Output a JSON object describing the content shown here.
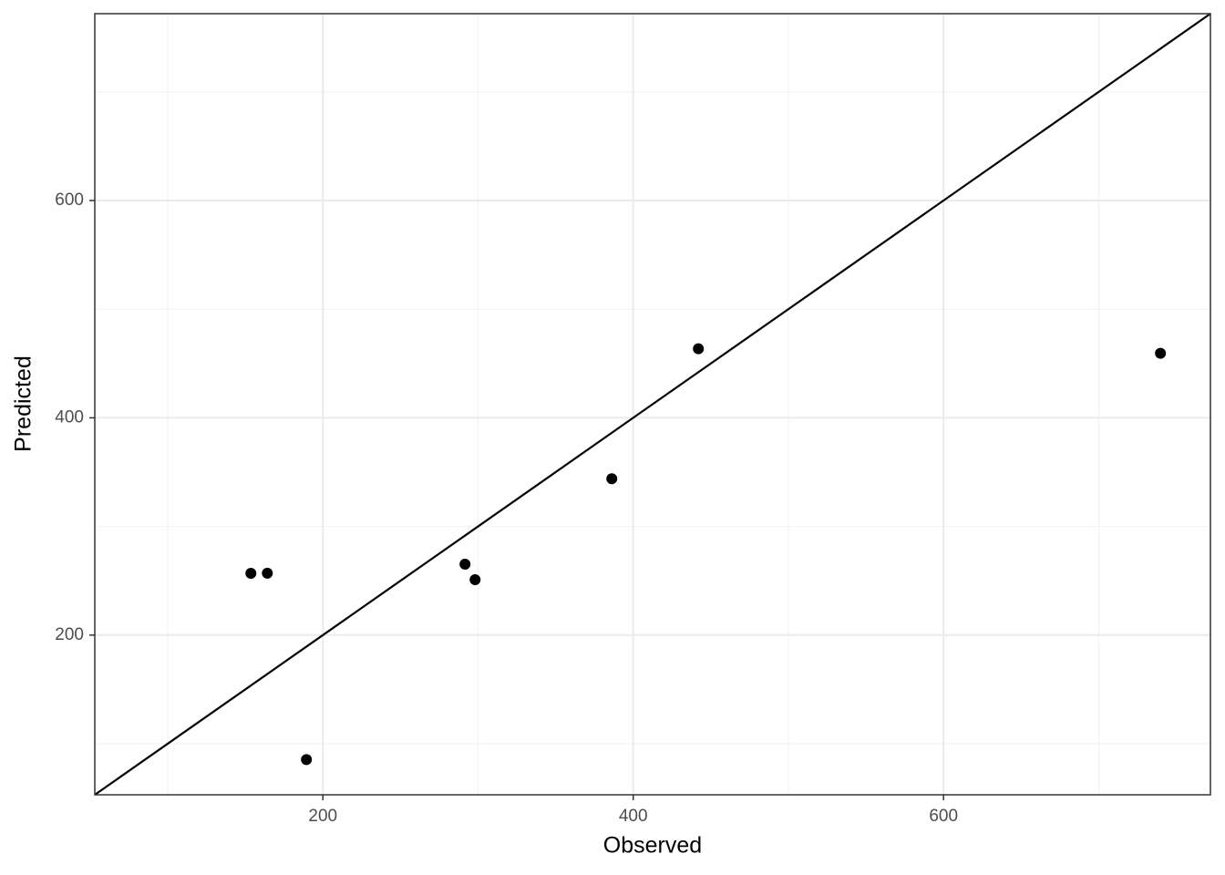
{
  "chart_data": {
    "type": "scatter",
    "x_label": "Observed",
    "y_label": "Predicted",
    "x": [
      153.6,
      164.2,
      189.4,
      291.6,
      298.1,
      386.2,
      442,
      739.8
    ],
    "y": [
      256.9,
      257,
      85.4,
      265.3,
      251,
      343.9,
      463.6,
      459.4
    ],
    "color": "#000000",
    "xlim": [
      53,
      772
    ],
    "ylim": [
      53,
      772
    ],
    "xticks": [
      200,
      400,
      600
    ],
    "yticks": [
      200,
      400,
      600
    ],
    "xminor": [
      100,
      300,
      500,
      700
    ],
    "yminor": [
      100,
      300,
      500,
      700
    ],
    "grid": true,
    "abline": {
      "slope": 1,
      "intercept": 0
    }
  }
}
